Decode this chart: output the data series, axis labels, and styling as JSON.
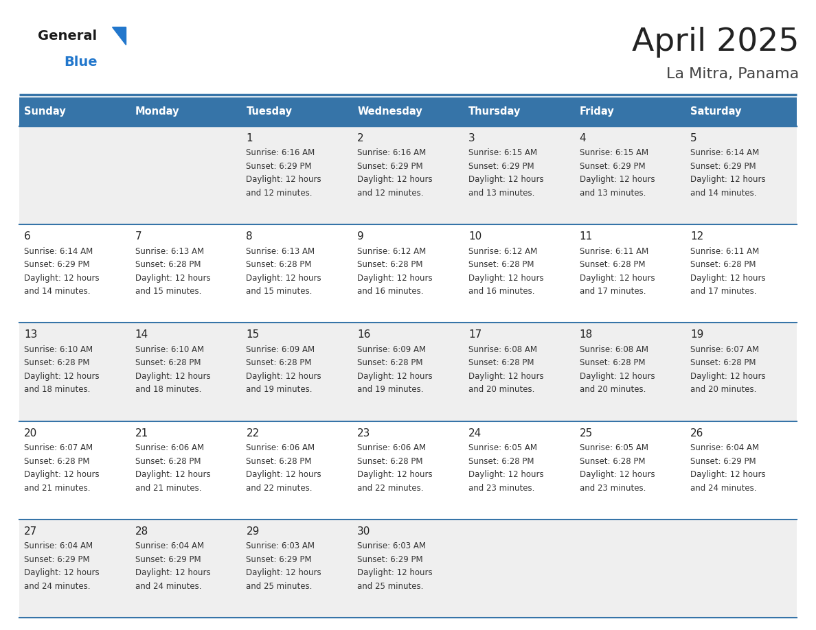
{
  "title": "April 2025",
  "subtitle": "La Mitra, Panama",
  "header_bg_color": "#3674A8",
  "header_text_color": "#FFFFFF",
  "weekdays": [
    "Sunday",
    "Monday",
    "Tuesday",
    "Wednesday",
    "Thursday",
    "Friday",
    "Saturday"
  ],
  "odd_row_bg": "#EFEFEF",
  "even_row_bg": "#FFFFFF",
  "border_color": "#3674A8",
  "day_number_color": "#222222",
  "cell_text_color": "#333333",
  "title_color": "#222222",
  "subtitle_color": "#444444",
  "logo_general_color": "#1a1a1a",
  "logo_blue_color": "#2277CC",
  "logo_triangle_color": "#2277CC",
  "calendar": [
    [
      null,
      null,
      {
        "day": "1",
        "sunrise": "6:16 AM",
        "sunset": "6:29 PM",
        "daylight_h": "12 hours",
        "daylight_m": "and 12 minutes."
      },
      {
        "day": "2",
        "sunrise": "6:16 AM",
        "sunset": "6:29 PM",
        "daylight_h": "12 hours",
        "daylight_m": "and 12 minutes."
      },
      {
        "day": "3",
        "sunrise": "6:15 AM",
        "sunset": "6:29 PM",
        "daylight_h": "12 hours",
        "daylight_m": "and 13 minutes."
      },
      {
        "day": "4",
        "sunrise": "6:15 AM",
        "sunset": "6:29 PM",
        "daylight_h": "12 hours",
        "daylight_m": "and 13 minutes."
      },
      {
        "day": "5",
        "sunrise": "6:14 AM",
        "sunset": "6:29 PM",
        "daylight_h": "12 hours",
        "daylight_m": "and 14 minutes."
      }
    ],
    [
      {
        "day": "6",
        "sunrise": "6:14 AM",
        "sunset": "6:29 PM",
        "daylight_h": "12 hours",
        "daylight_m": "and 14 minutes."
      },
      {
        "day": "7",
        "sunrise": "6:13 AM",
        "sunset": "6:28 PM",
        "daylight_h": "12 hours",
        "daylight_m": "and 15 minutes."
      },
      {
        "day": "8",
        "sunrise": "6:13 AM",
        "sunset": "6:28 PM",
        "daylight_h": "12 hours",
        "daylight_m": "and 15 minutes."
      },
      {
        "day": "9",
        "sunrise": "6:12 AM",
        "sunset": "6:28 PM",
        "daylight_h": "12 hours",
        "daylight_m": "and 16 minutes."
      },
      {
        "day": "10",
        "sunrise": "6:12 AM",
        "sunset": "6:28 PM",
        "daylight_h": "12 hours",
        "daylight_m": "and 16 minutes."
      },
      {
        "day": "11",
        "sunrise": "6:11 AM",
        "sunset": "6:28 PM",
        "daylight_h": "12 hours",
        "daylight_m": "and 17 minutes."
      },
      {
        "day": "12",
        "sunrise": "6:11 AM",
        "sunset": "6:28 PM",
        "daylight_h": "12 hours",
        "daylight_m": "and 17 minutes."
      }
    ],
    [
      {
        "day": "13",
        "sunrise": "6:10 AM",
        "sunset": "6:28 PM",
        "daylight_h": "12 hours",
        "daylight_m": "and 18 minutes."
      },
      {
        "day": "14",
        "sunrise": "6:10 AM",
        "sunset": "6:28 PM",
        "daylight_h": "12 hours",
        "daylight_m": "and 18 minutes."
      },
      {
        "day": "15",
        "sunrise": "6:09 AM",
        "sunset": "6:28 PM",
        "daylight_h": "12 hours",
        "daylight_m": "and 19 minutes."
      },
      {
        "day": "16",
        "sunrise": "6:09 AM",
        "sunset": "6:28 PM",
        "daylight_h": "12 hours",
        "daylight_m": "and 19 minutes."
      },
      {
        "day": "17",
        "sunrise": "6:08 AM",
        "sunset": "6:28 PM",
        "daylight_h": "12 hours",
        "daylight_m": "and 20 minutes."
      },
      {
        "day": "18",
        "sunrise": "6:08 AM",
        "sunset": "6:28 PM",
        "daylight_h": "12 hours",
        "daylight_m": "and 20 minutes."
      },
      {
        "day": "19",
        "sunrise": "6:07 AM",
        "sunset": "6:28 PM",
        "daylight_h": "12 hours",
        "daylight_m": "and 20 minutes."
      }
    ],
    [
      {
        "day": "20",
        "sunrise": "6:07 AM",
        "sunset": "6:28 PM",
        "daylight_h": "12 hours",
        "daylight_m": "and 21 minutes."
      },
      {
        "day": "21",
        "sunrise": "6:06 AM",
        "sunset": "6:28 PM",
        "daylight_h": "12 hours",
        "daylight_m": "and 21 minutes."
      },
      {
        "day": "22",
        "sunrise": "6:06 AM",
        "sunset": "6:28 PM",
        "daylight_h": "12 hours",
        "daylight_m": "and 22 minutes."
      },
      {
        "day": "23",
        "sunrise": "6:06 AM",
        "sunset": "6:28 PM",
        "daylight_h": "12 hours",
        "daylight_m": "and 22 minutes."
      },
      {
        "day": "24",
        "sunrise": "6:05 AM",
        "sunset": "6:28 PM",
        "daylight_h": "12 hours",
        "daylight_m": "and 23 minutes."
      },
      {
        "day": "25",
        "sunrise": "6:05 AM",
        "sunset": "6:28 PM",
        "daylight_h": "12 hours",
        "daylight_m": "and 23 minutes."
      },
      {
        "day": "26",
        "sunrise": "6:04 AM",
        "sunset": "6:29 PM",
        "daylight_h": "12 hours",
        "daylight_m": "and 24 minutes."
      }
    ],
    [
      {
        "day": "27",
        "sunrise": "6:04 AM",
        "sunset": "6:29 PM",
        "daylight_h": "12 hours",
        "daylight_m": "and 24 minutes."
      },
      {
        "day": "28",
        "sunrise": "6:04 AM",
        "sunset": "6:29 PM",
        "daylight_h": "12 hours",
        "daylight_m": "and 24 minutes."
      },
      {
        "day": "29",
        "sunrise": "6:03 AM",
        "sunset": "6:29 PM",
        "daylight_h": "12 hours",
        "daylight_m": "and 25 minutes."
      },
      {
        "day": "30",
        "sunrise": "6:03 AM",
        "sunset": "6:29 PM",
        "daylight_h": "12 hours",
        "daylight_m": "and 25 minutes."
      },
      null,
      null,
      null
    ]
  ]
}
